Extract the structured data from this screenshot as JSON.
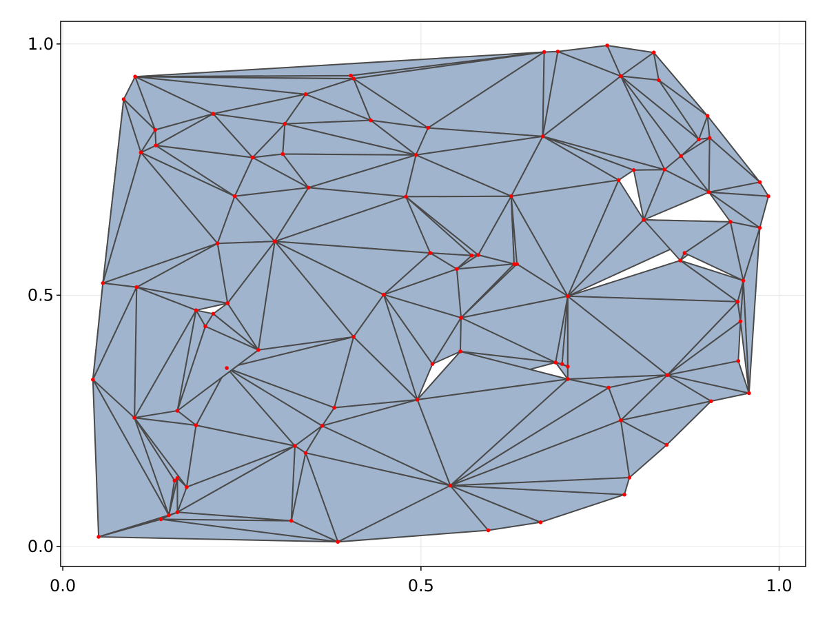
{
  "chart_data": {
    "type": "scatter",
    "subtype": "delaunay-triangulation",
    "title": "",
    "xlabel": "",
    "ylabel": "",
    "xlim": [
      -0.003,
      1.037
    ],
    "ylim": [
      -0.04,
      1.045
    ],
    "grid": true,
    "legend": "none",
    "xticks": [
      0.0,
      0.5,
      1.0
    ],
    "yticks": [
      0.0,
      0.5,
      1.0
    ],
    "xtick_labels": [
      "0.0",
      "0.5",
      "1.0"
    ],
    "ytick_labels": [
      "0.0",
      "0.5",
      "1.0"
    ],
    "colors": {
      "fill": "#a0b4cd",
      "edge": "#4a4a4a",
      "point": "#ff0000",
      "grid": "#e6e6e6",
      "frame": "#000000"
    },
    "points": [
      [
        0.05,
        0.019
      ],
      [
        0.384,
        0.009
      ],
      [
        0.594,
        0.032
      ],
      [
        0.667,
        0.048
      ],
      [
        0.784,
        0.103
      ],
      [
        0.791,
        0.137
      ],
      [
        0.843,
        0.202
      ],
      [
        0.905,
        0.289
      ],
      [
        0.958,
        0.305
      ],
      [
        0.042,
        0.332
      ],
      [
        0.056,
        0.524
      ],
      [
        0.085,
        0.89
      ],
      [
        0.101,
        0.935
      ],
      [
        0.109,
        0.784
      ],
      [
        0.129,
        0.829
      ],
      [
        0.13,
        0.798
      ],
      [
        0.402,
        0.937
      ],
      [
        0.406,
        0.931
      ],
      [
        0.339,
        0.9
      ],
      [
        0.21,
        0.861
      ],
      [
        0.31,
        0.841
      ],
      [
        0.43,
        0.848
      ],
      [
        0.51,
        0.833
      ],
      [
        0.67,
        0.816
      ],
      [
        0.691,
        0.985
      ],
      [
        0.672,
        0.984
      ],
      [
        0.76,
        0.997
      ],
      [
        0.825,
        0.983
      ],
      [
        0.779,
        0.936
      ],
      [
        0.832,
        0.928
      ],
      [
        0.9,
        0.857
      ],
      [
        0.888,
        0.81
      ],
      [
        0.903,
        0.813
      ],
      [
        0.863,
        0.777
      ],
      [
        0.973,
        0.725
      ],
      [
        0.985,
        0.697
      ],
      [
        0.973,
        0.634
      ],
      [
        0.902,
        0.705
      ],
      [
        0.84,
        0.75
      ],
      [
        0.797,
        0.749
      ],
      [
        0.776,
        0.729
      ],
      [
        0.811,
        0.65
      ],
      [
        0.932,
        0.646
      ],
      [
        0.307,
        0.781
      ],
      [
        0.265,
        0.774
      ],
      [
        0.343,
        0.714
      ],
      [
        0.24,
        0.697
      ],
      [
        0.479,
        0.696
      ],
      [
        0.626,
        0.697
      ],
      [
        0.493,
        0.779
      ],
      [
        0.296,
        0.607
      ],
      [
        0.216,
        0.603
      ],
      [
        0.513,
        0.584
      ],
      [
        0.571,
        0.579
      ],
      [
        0.58,
        0.58
      ],
      [
        0.63,
        0.562
      ],
      [
        0.634,
        0.562
      ],
      [
        0.55,
        0.552
      ],
      [
        0.862,
        0.569
      ],
      [
        0.868,
        0.584
      ],
      [
        0.95,
        0.529
      ],
      [
        0.942,
        0.487
      ],
      [
        0.946,
        0.448
      ],
      [
        0.943,
        0.369
      ],
      [
        0.103,
        0.516
      ],
      [
        0.186,
        0.47
      ],
      [
        0.23,
        0.484
      ],
      [
        0.21,
        0.463
      ],
      [
        0.199,
        0.438
      ],
      [
        0.448,
        0.501
      ],
      [
        0.556,
        0.455
      ],
      [
        0.705,
        0.498
      ],
      [
        0.406,
        0.417
      ],
      [
        0.273,
        0.391
      ],
      [
        0.516,
        0.363
      ],
      [
        0.555,
        0.388
      ],
      [
        0.688,
        0.366
      ],
      [
        0.697,
        0.363
      ],
      [
        0.705,
        0.358
      ],
      [
        0.705,
        0.333
      ],
      [
        0.844,
        0.341
      ],
      [
        0.762,
        0.316
      ],
      [
        0.229,
        0.355
      ],
      [
        0.16,
        0.27
      ],
      [
        0.1,
        0.256
      ],
      [
        0.186,
        0.241
      ],
      [
        0.379,
        0.276
      ],
      [
        0.495,
        0.292
      ],
      [
        0.362,
        0.24
      ],
      [
        0.779,
        0.251
      ],
      [
        0.324,
        0.2
      ],
      [
        0.339,
        0.186
      ],
      [
        0.541,
        0.121
      ],
      [
        0.16,
        0.136
      ],
      [
        0.156,
        0.131
      ],
      [
        0.173,
        0.118
      ],
      [
        0.16,
        0.068
      ],
      [
        0.148,
        0.062
      ],
      [
        0.137,
        0.054
      ],
      [
        0.319,
        0.051
      ]
    ],
    "triangles": [
      [
        12,
        11,
        14
      ],
      [
        11,
        13,
        14
      ],
      [
        11,
        9,
        10
      ],
      [
        11,
        10,
        13
      ],
      [
        12,
        14,
        19
      ],
      [
        12,
        19,
        18
      ],
      [
        12,
        18,
        17
      ],
      [
        12,
        17,
        16
      ],
      [
        12,
        16,
        25
      ],
      [
        14,
        15,
        19
      ],
      [
        13,
        15,
        14
      ],
      [
        15,
        44,
        19
      ],
      [
        19,
        44,
        20
      ],
      [
        19,
        20,
        18
      ],
      [
        18,
        20,
        21
      ],
      [
        18,
        21,
        17
      ],
      [
        17,
        21,
        25
      ],
      [
        16,
        17,
        25
      ],
      [
        17,
        21,
        22
      ],
      [
        17,
        22,
        25
      ],
      [
        25,
        22,
        23
      ],
      [
        25,
        23,
        24
      ],
      [
        23,
        24,
        28
      ],
      [
        24,
        26,
        28
      ],
      [
        26,
        27,
        28
      ],
      [
        27,
        29,
        28
      ],
      [
        27,
        30,
        29
      ],
      [
        28,
        29,
        31
      ],
      [
        29,
        30,
        31
      ],
      [
        30,
        31,
        32
      ],
      [
        30,
        32,
        34
      ],
      [
        31,
        33,
        32
      ],
      [
        28,
        31,
        33
      ],
      [
        28,
        33,
        38
      ],
      [
        28,
        38,
        23
      ],
      [
        32,
        33,
        37
      ],
      [
        32,
        37,
        34
      ],
      [
        34,
        37,
        35
      ],
      [
        37,
        36,
        35
      ],
      [
        37,
        42,
        36
      ],
      [
        33,
        38,
        37
      ],
      [
        38,
        37,
        41
      ],
      [
        38,
        41,
        39
      ],
      [
        23,
        38,
        39
      ],
      [
        23,
        39,
        40
      ],
      [
        23,
        40,
        48
      ],
      [
        20,
        21,
        49
      ],
      [
        20,
        43,
        49
      ],
      [
        21,
        49,
        22
      ],
      [
        22,
        49,
        23
      ],
      [
        49,
        48,
        23
      ],
      [
        43,
        44,
        20
      ],
      [
        43,
        45,
        49
      ],
      [
        43,
        44,
        45
      ],
      [
        44,
        46,
        45
      ],
      [
        45,
        47,
        49
      ],
      [
        47,
        48,
        49
      ],
      [
        15,
        13,
        46
      ],
      [
        15,
        46,
        44
      ],
      [
        13,
        46,
        51
      ],
      [
        13,
        51,
        10
      ],
      [
        46,
        50,
        51
      ],
      [
        46,
        45,
        50
      ],
      [
        45,
        47,
        50
      ],
      [
        47,
        52,
        50
      ],
      [
        47,
        53,
        52
      ],
      [
        47,
        54,
        53
      ],
      [
        47,
        48,
        54
      ],
      [
        48,
        54,
        55
      ],
      [
        48,
        55,
        56
      ],
      [
        48,
        56,
        71
      ],
      [
        48,
        40,
        71
      ],
      [
        40,
        41,
        71
      ],
      [
        41,
        42,
        71
      ],
      [
        41,
        58,
        42
      ],
      [
        42,
        58,
        59
      ],
      [
        42,
        59,
        60
      ],
      [
        42,
        36,
        60
      ],
      [
        36,
        8,
        60
      ],
      [
        60,
        8,
        62
      ],
      [
        60,
        61,
        62
      ],
      [
        58,
        60,
        61
      ],
      [
        58,
        71,
        61
      ],
      [
        52,
        57,
        53
      ],
      [
        53,
        57,
        54
      ],
      [
        54,
        57,
        55
      ],
      [
        55,
        57,
        70
      ],
      [
        56,
        55,
        70
      ],
      [
        56,
        70,
        71
      ],
      [
        52,
        57,
        69
      ],
      [
        57,
        69,
        70
      ],
      [
        50,
        52,
        69
      ],
      [
        50,
        69,
        72
      ],
      [
        50,
        51,
        66
      ],
      [
        51,
        66,
        64
      ],
      [
        51,
        64,
        10
      ],
      [
        64,
        66,
        65
      ],
      [
        66,
        67,
        73
      ],
      [
        66,
        50,
        73
      ],
      [
        50,
        72,
        73
      ],
      [
        65,
        67,
        68
      ],
      [
        65,
        68,
        83
      ],
      [
        65,
        83,
        84
      ],
      [
        64,
        65,
        84
      ],
      [
        9,
        10,
        64
      ],
      [
        9,
        64,
        84
      ],
      [
        9,
        84,
        97
      ],
      [
        9,
        97,
        0
      ],
      [
        72,
        73,
        82
      ],
      [
        72,
        82,
        86
      ],
      [
        72,
        86,
        87
      ],
      [
        69,
        72,
        87
      ],
      [
        69,
        74,
        87
      ],
      [
        69,
        70,
        74
      ],
      [
        70,
        74,
        75
      ],
      [
        70,
        71,
        76
      ],
      [
        70,
        75,
        76
      ],
      [
        75,
        76,
        87
      ],
      [
        76,
        77,
        78
      ],
      [
        76,
        78,
        79
      ],
      [
        71,
        76,
        77
      ],
      [
        71,
        77,
        78
      ],
      [
        71,
        78,
        79
      ],
      [
        71,
        79,
        80
      ],
      [
        71,
        80,
        61
      ],
      [
        61,
        80,
        62
      ],
      [
        62,
        80,
        63
      ],
      [
        63,
        80,
        8
      ],
      [
        8,
        80,
        7
      ],
      [
        79,
        80,
        81
      ],
      [
        80,
        81,
        89
      ],
      [
        80,
        89,
        7
      ],
      [
        89,
        7,
        6
      ],
      [
        89,
        6,
        5
      ],
      [
        89,
        5,
        92
      ],
      [
        89,
        81,
        92
      ],
      [
        81,
        79,
        92
      ],
      [
        79,
        75,
        87
      ],
      [
        87,
        79,
        92
      ],
      [
        87,
        86,
        88
      ],
      [
        87,
        88,
        92
      ],
      [
        86,
        82,
        88
      ],
      [
        82,
        85,
        90
      ],
      [
        82,
        88,
        90
      ],
      [
        88,
        90,
        91
      ],
      [
        88,
        91,
        92
      ],
      [
        83,
        82,
        85
      ],
      [
        83,
        73,
        82
      ],
      [
        68,
        73,
        83
      ],
      [
        67,
        68,
        73
      ],
      [
        84,
        83,
        85
      ],
      [
        84,
        85,
        95
      ],
      [
        84,
        95,
        94
      ],
      [
        84,
        94,
        97
      ],
      [
        94,
        95,
        93
      ],
      [
        95,
        85,
        90
      ],
      [
        95,
        90,
        96
      ],
      [
        90,
        91,
        99
      ],
      [
        90,
        99,
        96
      ],
      [
        91,
        92,
        1
      ],
      [
        91,
        99,
        1
      ],
      [
        92,
        1,
        2
      ],
      [
        92,
        2,
        3
      ],
      [
        92,
        3,
        4
      ],
      [
        92,
        4,
        5
      ],
      [
        96,
        99,
        98
      ],
      [
        97,
        98,
        0
      ],
      [
        98,
        99,
        1
      ],
      [
        98,
        1,
        0
      ],
      [
        93,
        95,
        96
      ],
      [
        93,
        96,
        97
      ],
      [
        94,
        93,
        97
      ]
    ]
  }
}
